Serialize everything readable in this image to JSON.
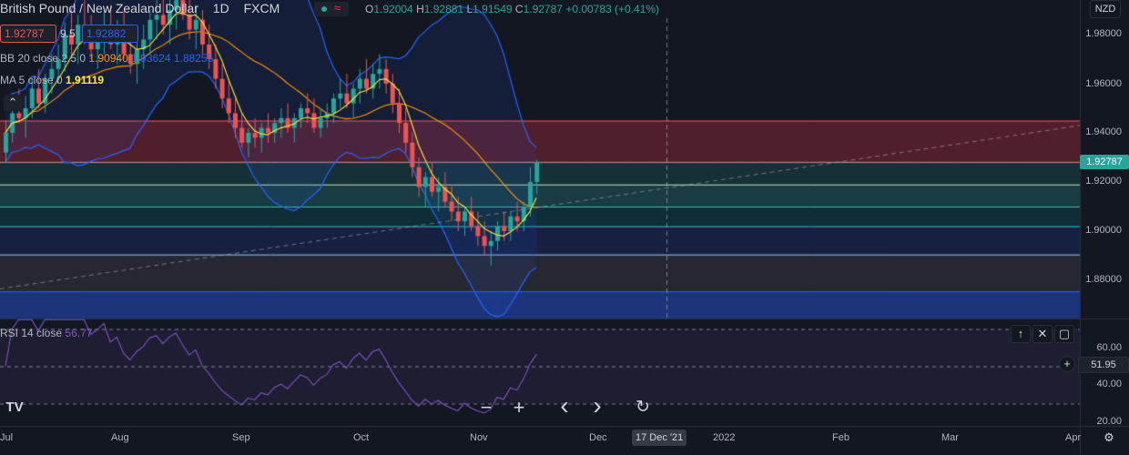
{
  "header": {
    "symbol": "British Pound / New Zealand Dollar",
    "interval": "1D",
    "exchange": "FXCM",
    "ohlc": {
      "o_label": "O",
      "o": "1.92004",
      "h_label": "H",
      "h": "1.92881",
      "l_label": "L",
      "l": "1.91549",
      "c_label": "C",
      "c": "1.92787",
      "change": "+0.00783 (+0.41%)"
    }
  },
  "trade": {
    "sell": "1.92787",
    "spread": "9.5",
    "buy": "1.92882"
  },
  "indicators": {
    "bb": {
      "label": "BB 20 close 2.5 0",
      "basis": "1.90940",
      "upper": "1.93624",
      "lower": "1.88255"
    },
    "ma": {
      "label": "MA 5 close 0",
      "value": "1.91119"
    },
    "rsi": {
      "label": "RSI 14 close",
      "value": "56.77",
      "axis_value": "51.95"
    }
  },
  "currency": "NZD",
  "price_axis": {
    "labels": [
      "1.98000",
      "1.96000",
      "1.94000",
      "1.92000",
      "1.90000",
      "1.88000"
    ],
    "current": "1.92787"
  },
  "rsi_axis": [
    "60.00",
    "40.00",
    "20.00"
  ],
  "time_axis": {
    "labels": [
      "Jul",
      "Aug",
      "Sep",
      "Oct",
      "Nov",
      "Dec",
      "2022",
      "Feb",
      "Mar",
      "Apr"
    ],
    "crosshair": "17 Dec '21"
  },
  "colors": {
    "up": "#26a69a",
    "down": "#ef5350",
    "bb": "#2962ff",
    "basis": "#ff9800",
    "ma": "#ffeb3b",
    "rsi": "#7e57c2"
  },
  "chart_data": {
    "type": "candlestick",
    "title": "British Pound / New Zealand Dollar",
    "ylim": [
      1.868,
      1.99
    ],
    "fib_levels": [
      1.945,
      1.9282,
      1.919,
      1.91,
      1.902,
      1.8905,
      1.8755
    ],
    "rsi_levels": [
      70,
      50,
      30
    ],
    "trendline": [
      {
        "date": "Jul",
        "price": 1.8765
      },
      {
        "date": "Apr",
        "price": 1.943
      }
    ],
    "candles": [
      [
        1.932,
        1.945,
        1.928,
        1.94
      ],
      [
        1.94,
        1.952,
        1.936,
        1.948
      ],
      [
        1.948,
        1.958,
        1.944,
        1.946
      ],
      [
        1.946,
        1.955,
        1.938,
        1.95
      ],
      [
        1.95,
        1.962,
        1.946,
        1.958
      ],
      [
        1.958,
        1.966,
        1.95,
        1.952
      ],
      [
        1.952,
        1.964,
        1.948,
        1.962
      ],
      [
        1.962,
        1.972,
        1.956,
        1.966
      ],
      [
        1.966,
        1.976,
        1.96,
        1.97
      ],
      [
        1.97,
        1.985,
        1.965,
        1.98
      ],
      [
        1.98,
        1.99,
        1.972,
        1.976
      ],
      [
        1.976,
        1.988,
        1.968,
        1.984
      ],
      [
        1.984,
        1.994,
        1.976,
        1.98
      ],
      [
        1.98,
        1.988,
        1.97,
        1.974
      ],
      [
        1.974,
        1.984,
        1.966,
        1.978
      ],
      [
        1.978,
        1.99,
        1.972,
        1.984
      ],
      [
        1.984,
        1.992,
        1.974,
        1.976
      ],
      [
        1.976,
        1.986,
        1.968,
        1.98
      ],
      [
        1.98,
        1.99,
        1.97,
        1.972
      ],
      [
        1.972,
        1.982,
        1.964,
        1.968
      ],
      [
        1.968,
        1.978,
        1.96,
        1.974
      ],
      [
        1.974,
        1.984,
        1.966,
        1.978
      ],
      [
        1.978,
        1.99,
        1.972,
        1.986
      ],
      [
        1.986,
        1.994,
        1.978,
        1.988
      ],
      [
        1.988,
        1.996,
        1.98,
        1.984
      ],
      [
        1.984,
        1.994,
        1.976,
        1.99
      ],
      [
        1.99,
        1.998,
        1.982,
        1.994
      ],
      [
        1.994,
        1.999,
        1.986,
        1.988
      ],
      [
        1.988,
        1.996,
        1.978,
        1.982
      ],
      [
        1.982,
        1.992,
        1.974,
        1.986
      ],
      [
        1.986,
        1.99,
        1.972,
        1.976
      ],
      [
        1.976,
        1.984,
        1.966,
        1.97
      ],
      [
        1.97,
        1.976,
        1.958,
        1.962
      ],
      [
        1.962,
        1.968,
        1.95,
        1.954
      ],
      [
        1.954,
        1.962,
        1.944,
        1.948
      ],
      [
        1.948,
        1.954,
        1.938,
        1.942
      ],
      [
        1.942,
        1.948,
        1.934,
        1.936
      ],
      [
        1.936,
        1.942,
        1.93,
        1.94
      ],
      [
        1.94,
        1.946,
        1.934,
        1.938
      ],
      [
        1.938,
        1.944,
        1.932,
        1.942
      ],
      [
        1.942,
        1.948,
        1.936,
        1.94
      ],
      [
        1.94,
        1.946,
        1.936,
        1.944
      ],
      [
        1.944,
        1.95,
        1.938,
        1.946
      ],
      [
        1.946,
        1.952,
        1.94,
        1.942
      ],
      [
        1.942,
        1.948,
        1.936,
        1.946
      ],
      [
        1.946,
        1.952,
        1.942,
        1.95
      ],
      [
        1.95,
        1.956,
        1.944,
        1.948
      ],
      [
        1.948,
        1.954,
        1.94,
        1.942
      ],
      [
        1.942,
        1.95,
        1.938,
        1.946
      ],
      [
        1.946,
        1.952,
        1.942,
        1.948
      ],
      [
        1.948,
        1.956,
        1.944,
        1.954
      ],
      [
        1.954,
        1.962,
        1.95,
        1.956
      ],
      [
        1.956,
        1.964,
        1.95,
        1.952
      ],
      [
        1.952,
        1.96,
        1.946,
        1.958
      ],
      [
        1.958,
        1.966,
        1.952,
        1.962
      ],
      [
        1.962,
        1.97,
        1.956,
        1.958
      ],
      [
        1.958,
        1.968,
        1.954,
        1.964
      ],
      [
        1.964,
        1.972,
        1.958,
        1.966
      ],
      [
        1.966,
        1.97,
        1.956,
        1.96
      ],
      [
        1.96,
        1.964,
        1.948,
        1.952
      ],
      [
        1.952,
        1.958,
        1.94,
        1.944
      ],
      [
        1.944,
        1.95,
        1.932,
        1.936
      ],
      [
        1.936,
        1.94,
        1.922,
        1.926
      ],
      [
        1.926,
        1.93,
        1.914,
        1.918
      ],
      [
        1.918,
        1.924,
        1.91,
        1.922
      ],
      [
        1.922,
        1.928,
        1.914,
        1.916
      ],
      [
        1.916,
        1.922,
        1.908,
        1.918
      ],
      [
        1.918,
        1.924,
        1.91,
        1.912
      ],
      [
        1.912,
        1.918,
        1.904,
        1.908
      ],
      [
        1.908,
        1.914,
        1.9,
        1.904
      ],
      [
        1.904,
        1.91,
        1.898,
        1.908
      ],
      [
        1.908,
        1.914,
        1.9,
        1.902
      ],
      [
        1.902,
        1.908,
        1.894,
        1.898
      ],
      [
        1.898,
        1.904,
        1.89,
        1.894
      ],
      [
        1.894,
        1.9,
        1.886,
        1.896
      ],
      [
        1.896,
        1.904,
        1.892,
        1.902
      ],
      [
        1.902,
        1.908,
        1.896,
        1.9
      ],
      [
        1.9,
        1.908,
        1.896,
        1.906
      ],
      [
        1.906,
        1.912,
        1.9,
        1.904
      ],
      [
        1.904,
        1.912,
        1.9,
        1.91
      ],
      [
        1.91,
        1.926,
        1.906,
        1.92
      ],
      [
        1.92,
        1.929,
        1.915,
        1.928
      ]
    ]
  },
  "toolbar": {
    "logo": "TV",
    "zoom_out": "−",
    "zoom_in": "+",
    "prev": "‹",
    "next": "›",
    "reset": "↻"
  },
  "pane_controls": {
    "up": "↑",
    "close": "✕",
    "max": "▢"
  },
  "settings_icon": "⚙"
}
